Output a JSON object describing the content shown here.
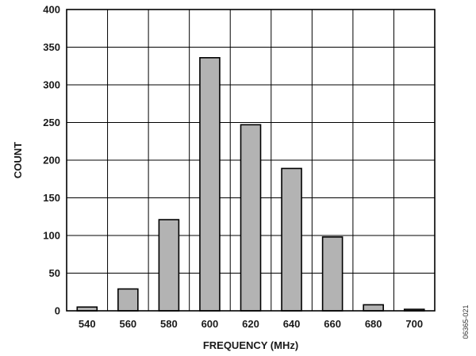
{
  "chart_data": {
    "type": "bar",
    "categories": [
      "540",
      "560",
      "580",
      "600",
      "620",
      "640",
      "660",
      "680",
      "700"
    ],
    "values": [
      5,
      29,
      121,
      336,
      247,
      189,
      98,
      8,
      2
    ],
    "xlabel": "FREQUENCY (MHz)",
    "ylabel": "COUNT",
    "ylim": [
      0,
      400
    ],
    "yticks": [
      0,
      50,
      100,
      150,
      200,
      250,
      300,
      350,
      400
    ],
    "grid": true,
    "bar_color": "#b3b3b3",
    "legend": "none"
  },
  "figure_id": "06365-021"
}
